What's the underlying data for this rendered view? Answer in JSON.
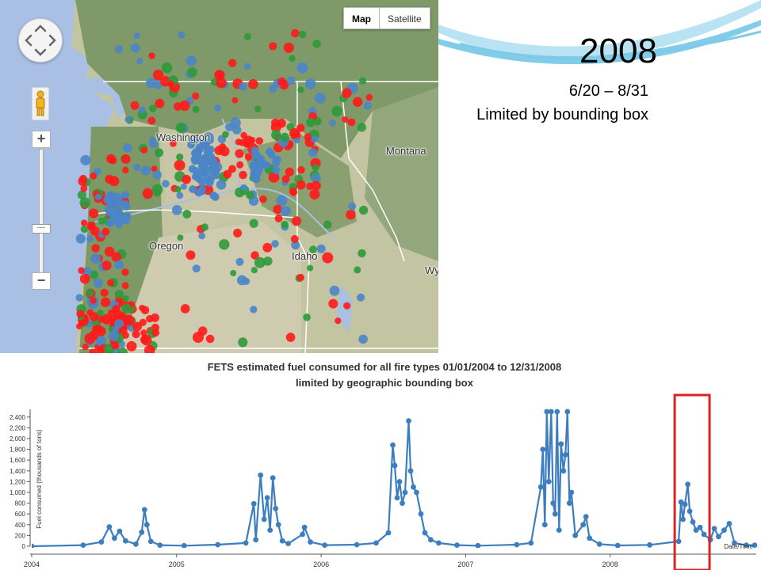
{
  "slide": {
    "title": "2008",
    "subtitle_dates": "6/20 – 8/31",
    "subtitle_note": "Limited by bounding box"
  },
  "map": {
    "type_buttons": [
      "Map",
      "Satellite"
    ],
    "active_type": "Map",
    "labels": [
      "Washington",
      "Oregon",
      "Idaho",
      "Montana",
      "Wy"
    ],
    "zoom_in": "+",
    "zoom_out": "−",
    "marker_colors": {
      "red": "#ff1a1a",
      "green": "#2e9a3a",
      "blue": "#4a85c8"
    }
  },
  "chart_data": {
    "type": "line",
    "title": "FETS estimated fuel consumed for all fire types 01/01/2004 to 12/31/2008",
    "subtitle": "limited by geographic bounding box",
    "xlabel": "Date/Time",
    "ylabel": "Fuel consumed (thousands of tons)",
    "x_ticks": [
      "2004",
      "2005",
      "2006",
      "2007",
      "2008"
    ],
    "y_ticks": [
      0,
      200,
      400,
      600,
      800,
      1000,
      1200,
      1400,
      1600,
      1800,
      2000,
      2200,
      2400
    ],
    "ylim": [
      0,
      2500
    ],
    "xlim": [
      "2004-01-01",
      "2008-12-31"
    ],
    "series_color": "#3d7ebf",
    "highlight_color": "#dd2222",
    "highlight_range": [
      "2008-06-20",
      "2008-08-31"
    ],
    "points": [
      [
        "2004-01-01",
        0
      ],
      [
        "2004-05-10",
        20
      ],
      [
        "2004-06-25",
        80
      ],
      [
        "2004-07-15",
        360
      ],
      [
        "2004-07-28",
        150
      ],
      [
        "2004-08-10",
        280
      ],
      [
        "2004-08-25",
        100
      ],
      [
        "2004-09-20",
        40
      ],
      [
        "2004-10-05",
        260
      ],
      [
        "2004-10-12",
        680
      ],
      [
        "2004-10-18",
        400
      ],
      [
        "2004-10-28",
        90
      ],
      [
        "2004-11-20",
        20
      ],
      [
        "2005-01-20",
        10
      ],
      [
        "2005-04-15",
        30
      ],
      [
        "2005-06-25",
        60
      ],
      [
        "2005-07-15",
        790
      ],
      [
        "2005-07-20",
        120
      ],
      [
        "2005-08-01",
        1320
      ],
      [
        "2005-08-10",
        500
      ],
      [
        "2005-08-18",
        900
      ],
      [
        "2005-08-25",
        300
      ],
      [
        "2005-09-01",
        1270
      ],
      [
        "2005-09-08",
        700
      ],
      [
        "2005-09-15",
        400
      ],
      [
        "2005-09-25",
        100
      ],
      [
        "2005-10-10",
        50
      ],
      [
        "2005-11-15",
        220
      ],
      [
        "2005-11-20",
        350
      ],
      [
        "2005-12-05",
        80
      ],
      [
        "2006-01-10",
        20
      ],
      [
        "2006-04-01",
        30
      ],
      [
        "2006-05-20",
        60
      ],
      [
        "2006-06-20",
        250
      ],
      [
        "2006-07-01",
        1880
      ],
      [
        "2006-07-06",
        1500
      ],
      [
        "2006-07-12",
        900
      ],
      [
        "2006-07-18",
        1200
      ],
      [
        "2006-07-25",
        800
      ],
      [
        "2006-08-01",
        1000
      ],
      [
        "2006-08-10",
        2330
      ],
      [
        "2006-08-15",
        1400
      ],
      [
        "2006-08-22",
        1100
      ],
      [
        "2006-08-30",
        1000
      ],
      [
        "2006-09-10",
        600
      ],
      [
        "2006-09-20",
        250
      ],
      [
        "2006-10-05",
        120
      ],
      [
        "2006-10-25",
        60
      ],
      [
        "2006-12-10",
        20
      ],
      [
        "2007-02-01",
        10
      ],
      [
        "2007-05-10",
        30
      ],
      [
        "2007-06-15",
        60
      ],
      [
        "2007-07-10",
        1100
      ],
      [
        "2007-07-15",
        1800
      ],
      [
        "2007-07-20",
        400
      ],
      [
        "2007-07-25",
        2500
      ],
      [
        "2007-07-30",
        1200
      ],
      [
        "2007-08-05",
        2500
      ],
      [
        "2007-08-10",
        800
      ],
      [
        "2007-08-15",
        600
      ],
      [
        "2007-08-20",
        2500
      ],
      [
        "2007-08-25",
        300
      ],
      [
        "2007-08-30",
        1900
      ],
      [
        "2007-09-05",
        1400
      ],
      [
        "2007-09-10",
        1700
      ],
      [
        "2007-09-15",
        2500
      ],
      [
        "2007-09-20",
        800
      ],
      [
        "2007-09-25",
        1000
      ],
      [
        "2007-10-05",
        200
      ],
      [
        "2007-10-25",
        400
      ],
      [
        "2007-11-01",
        550
      ],
      [
        "2007-11-10",
        150
      ],
      [
        "2007-12-05",
        40
      ],
      [
        "2008-01-20",
        15
      ],
      [
        "2008-04-10",
        25
      ],
      [
        "2008-06-22",
        90
      ],
      [
        "2008-06-28",
        820
      ],
      [
        "2008-07-03",
        500
      ],
      [
        "2008-07-08",
        780
      ],
      [
        "2008-07-15",
        1150
      ],
      [
        "2008-07-20",
        650
      ],
      [
        "2008-07-28",
        450
      ],
      [
        "2008-08-05",
        300
      ],
      [
        "2008-08-15",
        350
      ],
      [
        "2008-08-25",
        220
      ],
      [
        "2008-09-10",
        120
      ],
      [
        "2008-09-20",
        330
      ],
      [
        "2008-10-01",
        180
      ],
      [
        "2008-10-15",
        300
      ],
      [
        "2008-10-28",
        420
      ],
      [
        "2008-11-10",
        60
      ],
      [
        "2008-12-10",
        20
      ],
      [
        "2008-12-31",
        20
      ]
    ]
  }
}
